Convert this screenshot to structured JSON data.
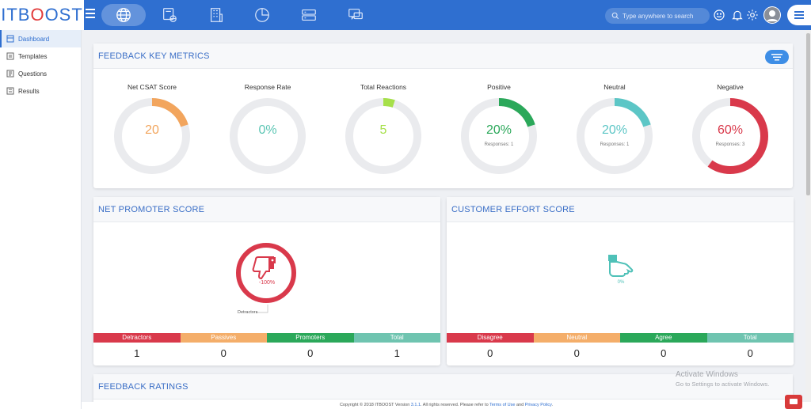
{
  "brand": {
    "logo_left": "ITB",
    "logo_o": "O",
    "logo_right": "OST"
  },
  "search": {
    "placeholder": "Type anywhere to search"
  },
  "sidebar": {
    "items": [
      {
        "label": "Dashboard"
      },
      {
        "label": "Templates"
      },
      {
        "label": "Questions"
      },
      {
        "label": "Results"
      }
    ]
  },
  "key_metrics": {
    "title": "FEEDBACK KEY METRICS",
    "metrics": [
      {
        "label": "Net CSAT Score",
        "value": "20",
        "sub": "",
        "fraction": 0.2,
        "color": "#f2a55d"
      },
      {
        "label": "Response Rate",
        "value": "0%",
        "sub": "",
        "fraction": 0.0,
        "color": "#5cc6b4"
      },
      {
        "label": "Total Reactions",
        "value": "5",
        "sub": "",
        "fraction": 0.05,
        "color": "#a6e04a"
      },
      {
        "label": "Positive",
        "value": "20%",
        "sub": "Responses: 1",
        "fraction": 0.2,
        "color": "#2ba85a"
      },
      {
        "label": "Neutral",
        "value": "20%",
        "sub": "Responses: 1",
        "fraction": 0.2,
        "color": "#5cc6c6"
      },
      {
        "label": "Negative",
        "value": "60%",
        "sub": "Responses: 3",
        "fraction": 0.6,
        "color": "#d9394b"
      }
    ]
  },
  "nps": {
    "title": "NET PROMOTER SCORE",
    "score": "-100%",
    "callout": "Detractors",
    "columns": [
      {
        "label": "Detractors",
        "value": "1",
        "color": "#d9394b"
      },
      {
        "label": "Passives",
        "value": "0",
        "color": "#f4ae6a"
      },
      {
        "label": "Promoters",
        "value": "0",
        "color": "#2ba85a"
      },
      {
        "label": "Total",
        "value": "1",
        "color": "#6fc4b0"
      }
    ]
  },
  "ces": {
    "title": "CUSTOMER EFFORT SCORE",
    "score": "0%",
    "columns": [
      {
        "label": "Disagree",
        "value": "0",
        "color": "#d9394b"
      },
      {
        "label": "Neutral",
        "value": "0",
        "color": "#f4ae6a"
      },
      {
        "label": "Agree",
        "value": "0",
        "color": "#2ba85a"
      },
      {
        "label": "Total",
        "value": "0",
        "color": "#6fc4b0"
      }
    ]
  },
  "ratings": {
    "title": "FEEDBACK RATINGS"
  },
  "footer": {
    "prefix": "Copyright © 2018 ITBOOST Version ",
    "version": "3.1.1",
    "middle": ". All rights reserved. Please refer to ",
    "terms": "Terms of Use",
    "and": " and ",
    "privacy": "Privacy Policy",
    "end": "."
  },
  "watermark": {
    "line1": "Activate Windows",
    "line2": "Go to Settings to activate Windows."
  }
}
